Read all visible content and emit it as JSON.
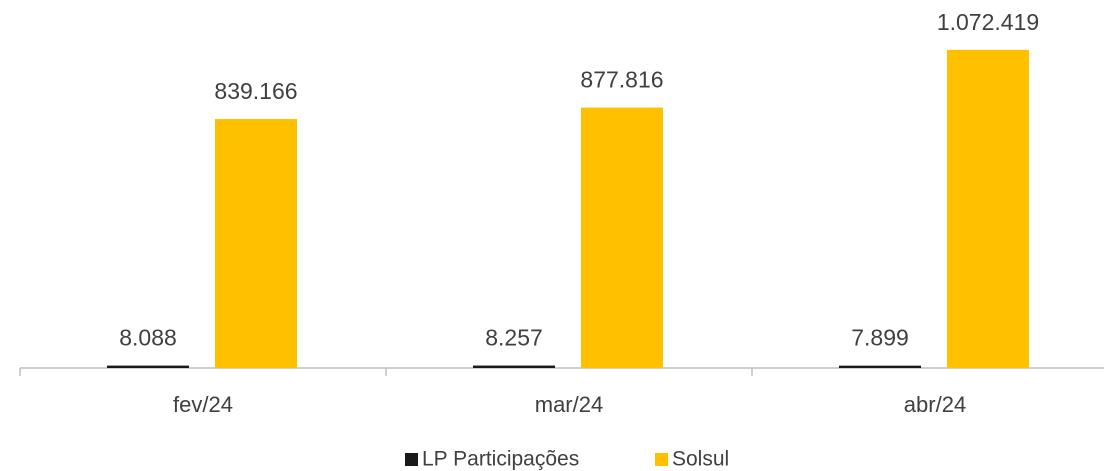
{
  "chart_data": {
    "type": "bar",
    "categories": [
      "fev/24",
      "mar/24",
      "abr/24"
    ],
    "series": [
      {
        "name": "LP Participações",
        "color": "#1a1a1a",
        "values": [
          8088,
          8257,
          7899
        ],
        "value_labels": [
          "8.088",
          "8.257",
          "7.899"
        ]
      },
      {
        "name": "Solsul",
        "color": "#ffc000",
        "values": [
          839166,
          877816,
          1072419
        ],
        "value_labels": [
          "839.166",
          "877.816",
          "1.072.419"
        ]
      }
    ],
    "ylim": [
      0,
      1200000
    ],
    "legend": "bottom"
  }
}
